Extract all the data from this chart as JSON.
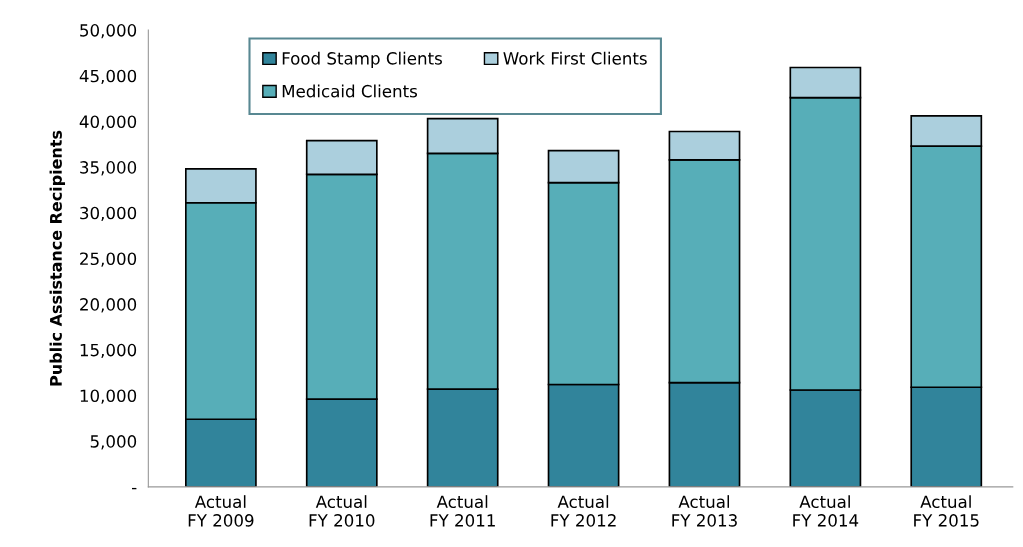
{
  "chart_data": {
    "type": "bar",
    "stacked": true,
    "ylabel": "Public Assistance Recipients",
    "categories": [
      "Actual\nFY 2009",
      "Actual\nFY 2010",
      "Actual\nFY 2011",
      "Actual\nFY 2012",
      "Actual\nFY 2013",
      "Actual\nFY 2014",
      "Actual\nFY 2015"
    ],
    "series": [
      {
        "name": "Food Stamp Clients",
        "color": "#31849b",
        "values": [
          7400,
          9600,
          10700,
          11200,
          11400,
          10600,
          10900
        ]
      },
      {
        "name": "Medicaid Clients",
        "color": "#57aeb8",
        "values": [
          23700,
          24600,
          25800,
          22100,
          24400,
          32000,
          26400
        ]
      },
      {
        "name": "Work First Clients",
        "color": "#abcfdd",
        "values": [
          3700,
          3700,
          3800,
          3500,
          3100,
          3300,
          3300
        ]
      }
    ],
    "ylim": [
      0,
      50000
    ],
    "yticks": [
      {
        "value": 0,
        "label": "-"
      },
      {
        "value": 5000,
        "label": "5,000"
      },
      {
        "value": 10000,
        "label": "10,000"
      },
      {
        "value": 15000,
        "label": "15,000"
      },
      {
        "value": 20000,
        "label": "20,000"
      },
      {
        "value": 25000,
        "label": "25,000"
      },
      {
        "value": 30000,
        "label": "30,000"
      },
      {
        "value": 35000,
        "label": "35,000"
      },
      {
        "value": 40000,
        "label": "40,000"
      },
      {
        "value": 45000,
        "label": "45,000"
      },
      {
        "value": 50000,
        "label": "50,000"
      }
    ],
    "grid": false,
    "legend": "top"
  }
}
